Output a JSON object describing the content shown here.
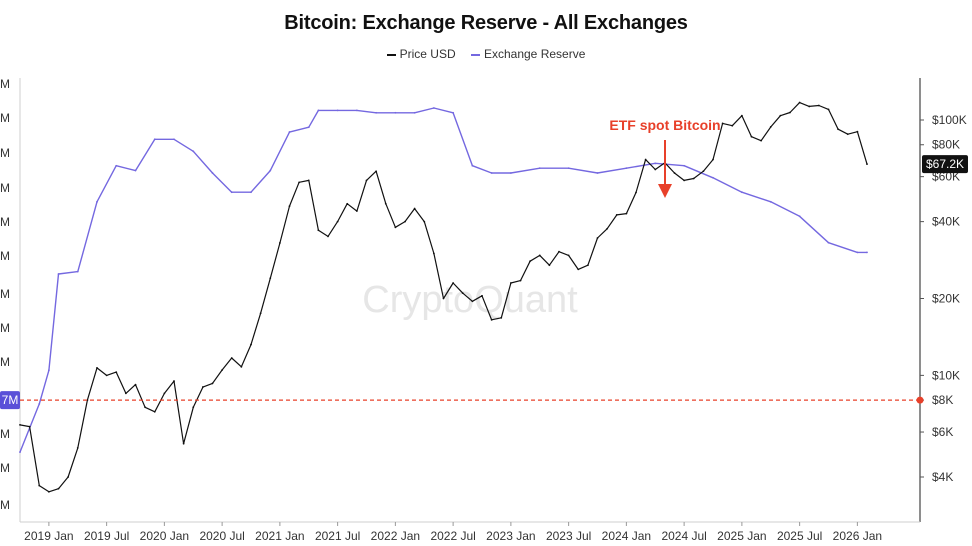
{
  "chart_data": {
    "type": "line",
    "title": "Bitcoin: Exchange Reserve - All Exchanges",
    "legend": [
      "Price USD",
      "Exchange Reserve"
    ],
    "watermark": "CryptoQuant",
    "annotation": "ETF spot Bitcoin",
    "current_price_label": "$67.2K",
    "left_badge_label": "7M",
    "x_ticks": [
      "2019 Jan",
      "2019 Jul",
      "2020 Jan",
      "2020 Jul",
      "2021 Jan",
      "2021 Jul",
      "2022 Jan",
      "2022 Jul",
      "2023 Jan",
      "2023 Jul",
      "2024 Jan",
      "2024 Jul",
      "2025 Jan",
      "2025 Jul",
      "2026 Jan"
    ],
    "left_ticks": [
      "M",
      "M",
      "M",
      "M",
      "M",
      "M",
      "M",
      "M",
      "M",
      "M",
      "M",
      "M",
      "M"
    ],
    "right_ticks": [
      "$100K",
      "$80K",
      "$60K",
      "$40K",
      "$20K",
      "$10K",
      "$8K",
      "$6K",
      "$4K"
    ],
    "right_tick_values": [
      100000,
      80000,
      60000,
      40000,
      20000,
      10000,
      8000,
      6000,
      4000
    ],
    "right_scale": "log",
    "grid": false,
    "legend_position": "top-center",
    "colors": {
      "price": "#111111",
      "reserve": "#7468e0",
      "annotation": "#e8402a",
      "badge": "#5a50d8",
      "price_badge": "#111111"
    },
    "series": [
      {
        "name": "Price USD",
        "axis": "right",
        "x": [
          "2018-10",
          "2018-11",
          "2018-12",
          "2019-01",
          "2019-02",
          "2019-03",
          "2019-04",
          "2019-05",
          "2019-06",
          "2019-07",
          "2019-08",
          "2019-09",
          "2019-10",
          "2019-11",
          "2019-12",
          "2020-01",
          "2020-02",
          "2020-03",
          "2020-04",
          "2020-05",
          "2020-06",
          "2020-07",
          "2020-08",
          "2020-09",
          "2020-10",
          "2020-11",
          "2020-12",
          "2021-01",
          "2021-02",
          "2021-03",
          "2021-04",
          "2021-05",
          "2021-06",
          "2021-07",
          "2021-08",
          "2021-09",
          "2021-10",
          "2021-11",
          "2021-12",
          "2022-01",
          "2022-02",
          "2022-03",
          "2022-04",
          "2022-05",
          "2022-06",
          "2022-07",
          "2022-08",
          "2022-09",
          "2022-10",
          "2022-11",
          "2022-12",
          "2023-01",
          "2023-02",
          "2023-03",
          "2023-04",
          "2023-05",
          "2023-06",
          "2023-07",
          "2023-08",
          "2023-09",
          "2023-10",
          "2023-11",
          "2023-12",
          "2024-01",
          "2024-02",
          "2024-03",
          "2024-04",
          "2024-05",
          "2024-06",
          "2024-07",
          "2024-08",
          "2024-09",
          "2024-10",
          "2024-11",
          "2024-12",
          "2025-01",
          "2025-02",
          "2025-03",
          "2025-04",
          "2025-05",
          "2025-06",
          "2025-07",
          "2025-08",
          "2025-09",
          "2025-10",
          "2025-11",
          "2025-12",
          "2026-01",
          "2026-02"
        ],
        "values": [
          6400,
          6300,
          3700,
          3500,
          3600,
          4000,
          5200,
          8000,
          10700,
          10000,
          10300,
          8500,
          9200,
          7500,
          7200,
          8500,
          9500,
          5400,
          7500,
          9000,
          9300,
          10500,
          11700,
          10800,
          13200,
          17500,
          24000,
          33000,
          46000,
          57000,
          58000,
          37000,
          35000,
          40000,
          47000,
          44000,
          58000,
          63000,
          47000,
          38000,
          40000,
          45000,
          40000,
          30000,
          20000,
          23000,
          21000,
          19500,
          20500,
          16500,
          16800,
          23000,
          23500,
          28000,
          29500,
          27000,
          30500,
          29500,
          26000,
          27000,
          34500,
          37500,
          42500,
          43000,
          52000,
          70000,
          64000,
          68000,
          62000,
          58000,
          59000,
          63000,
          70000,
          97000,
          95000,
          104000,
          86000,
          83000,
          94000,
          104000,
          107000,
          117000,
          113000,
          114000,
          110000,
          92000,
          88000,
          90000,
          67200
        ]
      },
      {
        "name": "Exchange Reserve",
        "axis": "left",
        "x": [
          "2018-10",
          "2018-12",
          "2019-01",
          "2019-02",
          "2019-04",
          "2019-06",
          "2019-08",
          "2019-10",
          "2019-12",
          "2020-02",
          "2020-04",
          "2020-06",
          "2020-08",
          "2020-10",
          "2020-12",
          "2021-02",
          "2021-04",
          "2021-05",
          "2021-07",
          "2021-09",
          "2021-11",
          "2022-01",
          "2022-03",
          "2022-05",
          "2022-07",
          "2022-09",
          "2022-11",
          "2023-01",
          "2023-04",
          "2023-07",
          "2023-10",
          "2024-01",
          "2024-04",
          "2024-07",
          "2024-10",
          "2025-01",
          "2025-04",
          "2025-07",
          "2025-10",
          "2026-01",
          "2026-02"
        ],
        "values": [
          2.22,
          2.42,
          2.56,
          2.96,
          2.97,
          3.26,
          3.41,
          3.39,
          3.52,
          3.52,
          3.47,
          3.38,
          3.3,
          3.3,
          3.39,
          3.55,
          3.57,
          3.64,
          3.64,
          3.64,
          3.63,
          3.63,
          3.63,
          3.65,
          3.63,
          3.41,
          3.38,
          3.38,
          3.4,
          3.4,
          3.38,
          3.4,
          3.42,
          3.41,
          3.36,
          3.3,
          3.26,
          3.2,
          3.09,
          3.05,
          3.05
        ]
      }
    ]
  }
}
